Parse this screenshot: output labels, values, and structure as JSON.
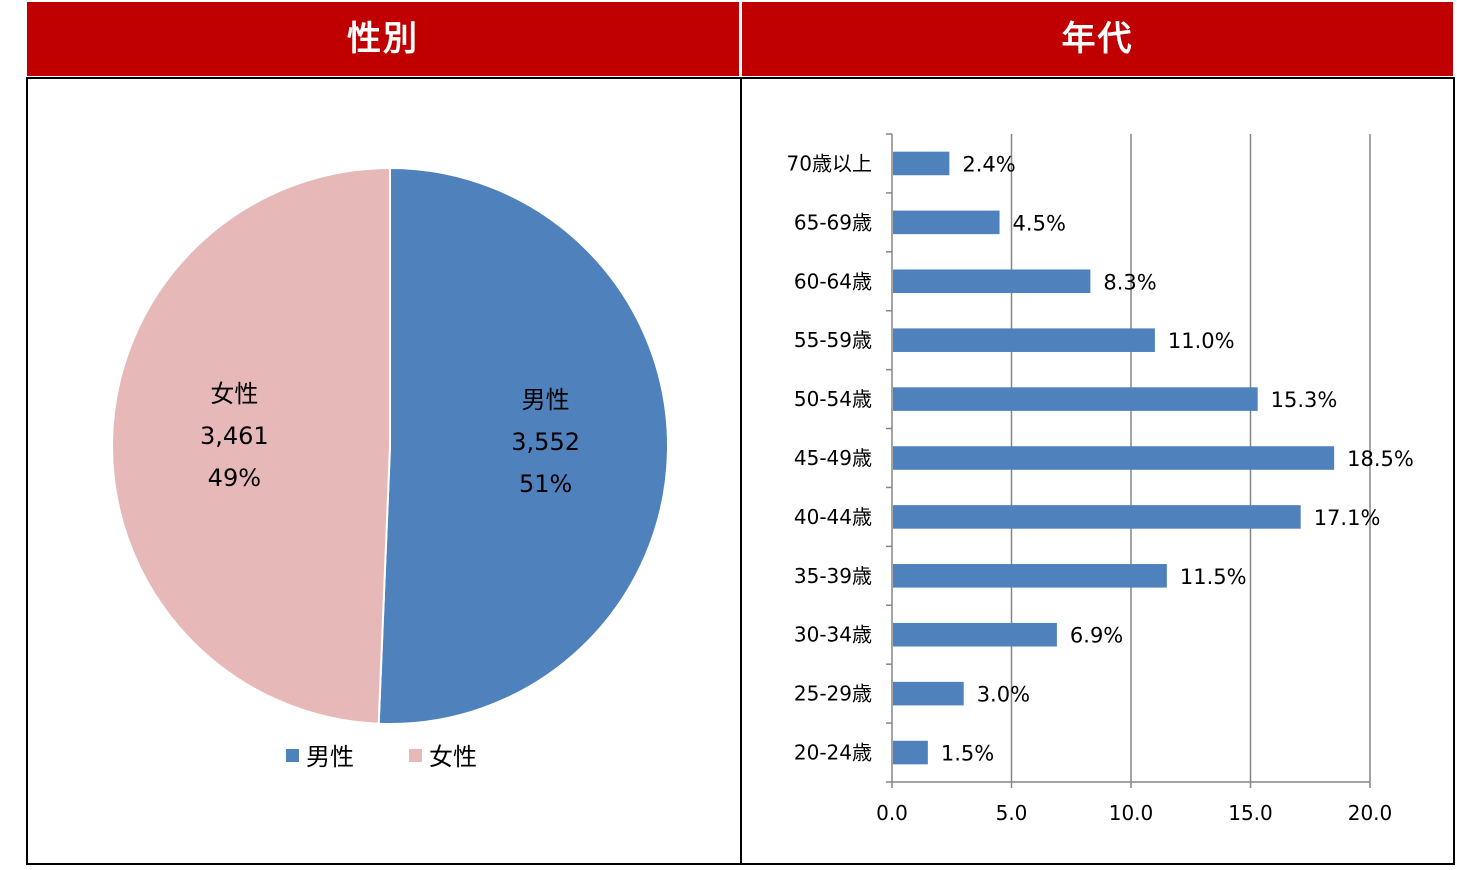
{
  "headers": {
    "left": "性別",
    "right": "年代"
  },
  "chart_data": [
    {
      "type": "pie",
      "title": "性別",
      "slices": [
        {
          "label": "男性",
          "value": 3552,
          "percent": "51%",
          "color": "#4f81bd"
        },
        {
          "label": "女性",
          "value": 3461,
          "percent": "49%",
          "color": "#e6b9b8"
        }
      ],
      "data_labels": [
        {
          "name": "男性",
          "count": "3,552",
          "pct": "51%"
        },
        {
          "name": "女性",
          "count": "3,461",
          "pct": "49%"
        }
      ],
      "legend": [
        "男性",
        "女性"
      ],
      "legend_position": "bottom"
    },
    {
      "type": "bar",
      "orientation": "horizontal",
      "title": "年代",
      "categories": [
        "70歳以上",
        "65-69歳",
        "60-64歳",
        "55-59歳",
        "50-54歳",
        "45-49歳",
        "40-44歳",
        "35-39歳",
        "30-34歳",
        "25-29歳",
        "20-24歳"
      ],
      "values": [
        2.4,
        4.5,
        8.3,
        11.0,
        15.3,
        18.5,
        17.1,
        11.5,
        6.9,
        3.0,
        1.5
      ],
      "value_labels": [
        "2.4%",
        "4.5%",
        "8.3%",
        "11.0%",
        "15.3%",
        "18.5%",
        "17.1%",
        "11.5%",
        "6.9%",
        "3.0%",
        "1.5%"
      ],
      "xlim": [
        0,
        20
      ],
      "xticks": [
        "0.0",
        "5.0",
        "10.0",
        "15.0",
        "20.0"
      ],
      "grid": "vertical",
      "bar_color": "#4f81bd"
    }
  ]
}
